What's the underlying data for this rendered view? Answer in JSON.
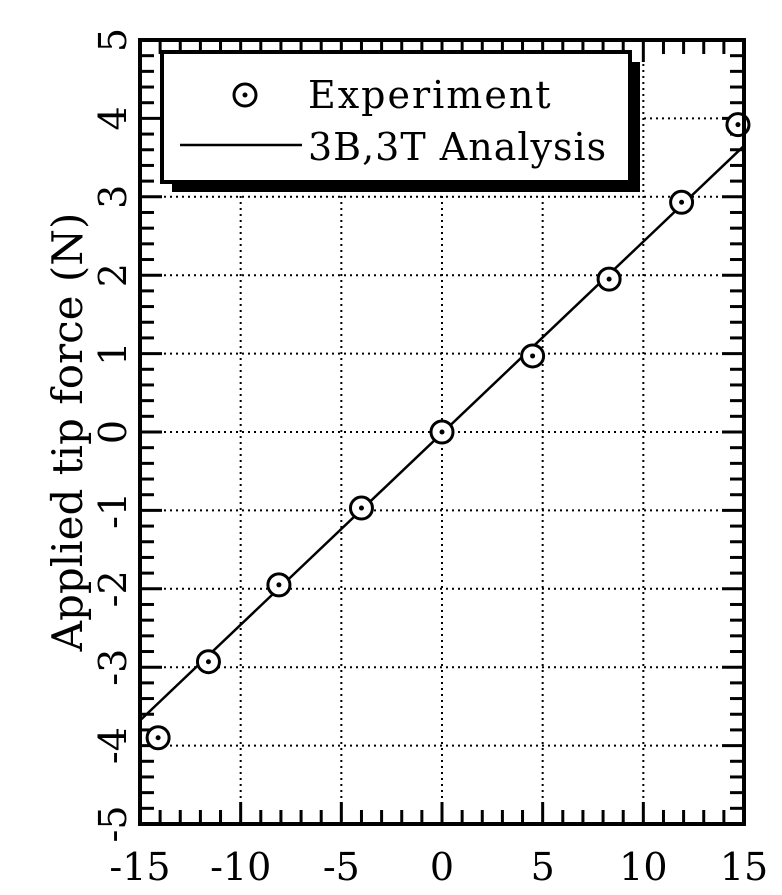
{
  "chart_data": {
    "type": "scatter",
    "title": "",
    "xlabel": "",
    "ylabel": "Applied tip force (N)",
    "xlim": [
      -15,
      15
    ],
    "ylim": [
      -5,
      5
    ],
    "xticks": [
      -15,
      -10,
      -5,
      0,
      5,
      10,
      15
    ],
    "yticks": [
      -5,
      -4,
      -3,
      -2,
      -1,
      0,
      1,
      2,
      3,
      4,
      5
    ],
    "x_tick_labels": [
      "-15",
      "-10",
      "-5",
      "0",
      "5",
      "10",
      "15"
    ],
    "y_tick_labels": [
      "-5",
      "-4",
      "-3",
      "-2",
      "-1",
      "0",
      "1",
      "2",
      "3",
      "4",
      "5"
    ],
    "grid": true,
    "legend_position": "top",
    "series": [
      {
        "name": "Experiment",
        "kind": "scatter",
        "marker": "circle-dot",
        "x": [
          -14.1,
          -11.6,
          -8.1,
          -4.0,
          0.0,
          4.5,
          8.3,
          11.9,
          14.7
        ],
        "y": [
          -3.9,
          -2.93,
          -1.95,
          -0.97,
          0.0,
          0.97,
          1.95,
          2.93,
          3.92
        ]
      },
      {
        "name": "3B,3T Analysis",
        "kind": "line",
        "x": [
          -15,
          15
        ],
        "y": [
          -3.68,
          3.65
        ]
      }
    ]
  }
}
